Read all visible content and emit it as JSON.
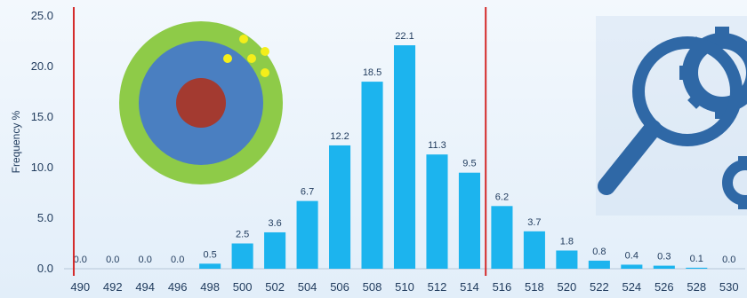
{
  "chart_data": {
    "type": "bar",
    "ylabel": "Frequency %",
    "ylim": [
      0,
      25
    ],
    "yticks": [
      "0.0",
      "5.0",
      "10.0",
      "15.0",
      "20.0",
      "25.0"
    ],
    "categories": [
      "490",
      "492",
      "494",
      "496",
      "498",
      "500",
      "502",
      "504",
      "506",
      "508",
      "510",
      "512",
      "514",
      "516",
      "518",
      "520",
      "522",
      "524",
      "526",
      "528",
      "530"
    ],
    "values": [
      0.0,
      0.0,
      0.0,
      0.0,
      0.5,
      2.5,
      3.6,
      6.7,
      12.2,
      18.5,
      22.1,
      11.3,
      9.5,
      6.2,
      3.7,
      1.8,
      0.8,
      0.4,
      0.3,
      0.1,
      0.0
    ],
    "data_labels": [
      "0.0",
      "0.0",
      "0.0",
      "0.0",
      "0.5",
      "2.5",
      "3.6",
      "6.7",
      "12.2",
      "18.5",
      "22.1",
      "11.3",
      "9.5",
      "6.2",
      "3.7",
      "1.8",
      "0.8",
      "0.4",
      "0.3",
      "0.1",
      "0.0"
    ],
    "limit_lines_x": [
      489.6,
      515.0
    ],
    "grid": false,
    "legend": "none"
  },
  "colors": {
    "bar": "#1cb4ee",
    "limit_line": "#d42a2a",
    "target_outer": "#8ecb48",
    "target_middle": "#4a7fc1",
    "target_center": "#a33a30",
    "target_dots": "#f4ee1a",
    "magnifier": "#2f68a6"
  },
  "decorations": {
    "left": "target-icon",
    "right": "magnifier-gear-icon"
  }
}
